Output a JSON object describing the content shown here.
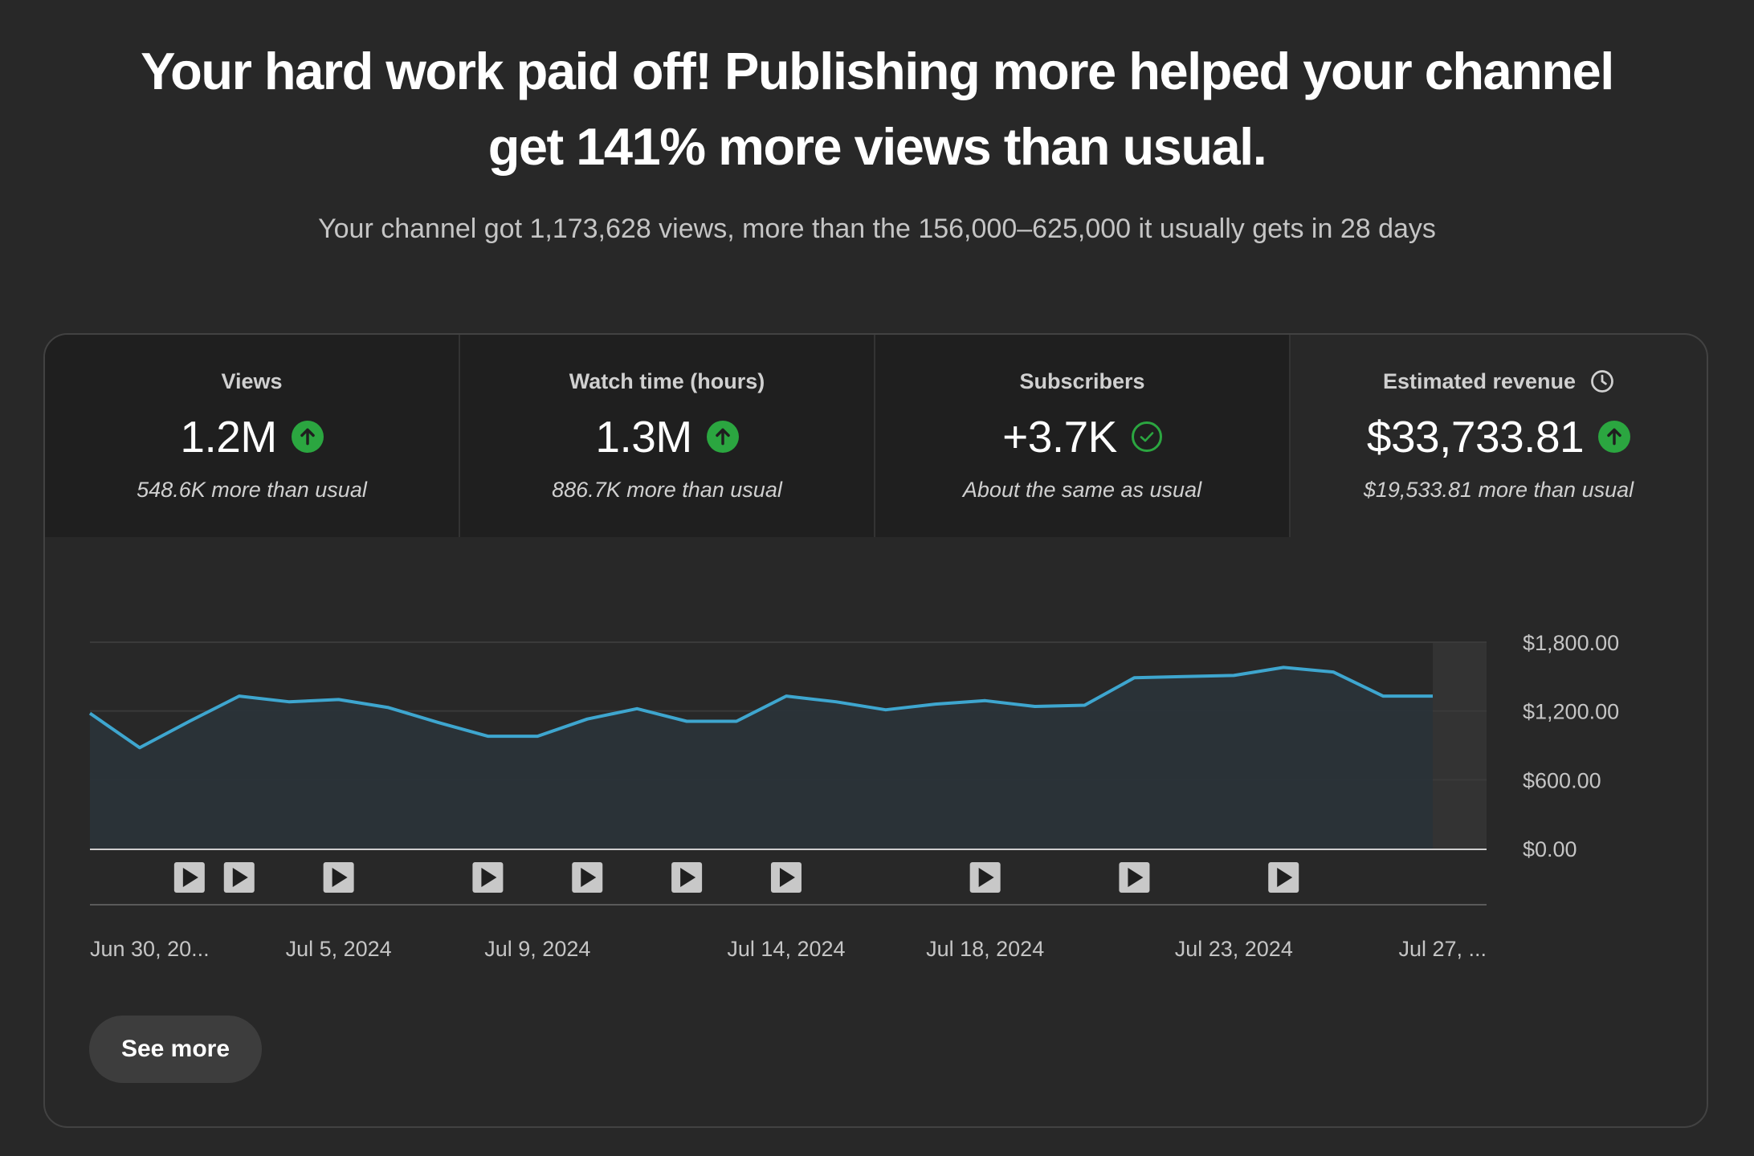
{
  "header": {
    "headline_line1": "Your hard work paid off! Publishing more helped your channel",
    "headline_line2": "get 141% more views than usual.",
    "subline": "Your channel got 1,173,628 views, more than the 156,000–625,000 it usually gets in 28 days"
  },
  "metrics": [
    {
      "title": "Views",
      "value": "1.2M",
      "icon": "arrow-up-icon",
      "note": "548.6K more than usual"
    },
    {
      "title": "Watch time (hours)",
      "value": "1.3M",
      "icon": "arrow-up-icon",
      "note": "886.7K more than usual"
    },
    {
      "title": "Subscribers",
      "value": "+3.7K",
      "icon": "check-circle-icon",
      "note": "About the same as usual"
    },
    {
      "title": "Estimated revenue",
      "value": "$33,733.81",
      "icon": "arrow-up-icon",
      "note": "$19,533.81 more than usual",
      "title_icon": "clock-icon"
    }
  ],
  "colors": {
    "background": "#282828",
    "line": "#3ea6cf",
    "area": "#2a3339",
    "positive": "#2ba640"
  },
  "chart_data": {
    "type": "area",
    "title": "",
    "xlabel": "",
    "ylabel": "",
    "y_tick_labels": [
      "$0.00",
      "$600.00",
      "$1,200.00",
      "$1,800.00"
    ],
    "y_ticks": [
      0,
      600,
      1200,
      1800
    ],
    "ylim": [
      0,
      1800
    ],
    "x_tick_labels": [
      "Jun 30, 20...",
      "Jul 5, 2024",
      "Jul 9, 2024",
      "Jul 14, 2024",
      "Jul 18, 2024",
      "Jul 23, 2024",
      "Jul 27, ..."
    ],
    "x_tick_dates": [
      "2024-06-30",
      "2024-07-05",
      "2024-07-09",
      "2024-07-14",
      "2024-07-18",
      "2024-07-23",
      "2024-07-27"
    ],
    "x": [
      "2024-06-30",
      "2024-07-01",
      "2024-07-02",
      "2024-07-03",
      "2024-07-04",
      "2024-07-05",
      "2024-07-06",
      "2024-07-07",
      "2024-07-08",
      "2024-07-09",
      "2024-07-10",
      "2024-07-11",
      "2024-07-12",
      "2024-07-13",
      "2024-07-14",
      "2024-07-15",
      "2024-07-16",
      "2024-07-17",
      "2024-07-18",
      "2024-07-19",
      "2024-07-20",
      "2024-07-21",
      "2024-07-22",
      "2024-07-23",
      "2024-07-24",
      "2024-07-25",
      "2024-07-26",
      "2024-07-27"
    ],
    "values": [
      1180,
      880,
      1110,
      1330,
      1280,
      1300,
      1230,
      1100,
      980,
      980,
      1130,
      1220,
      1110,
      1110,
      1330,
      1280,
      1210,
      1260,
      1290,
      1240,
      1250,
      1490,
      1500,
      1510,
      1580,
      1540,
      1330,
      1330
    ],
    "video_publish_dates": [
      "2024-07-02",
      "2024-07-03",
      "2024-07-05",
      "2024-07-08",
      "2024-07-10",
      "2024-07-12",
      "2024-07-14",
      "2024-07-18",
      "2024-07-21",
      "2024-07-24"
    ],
    "video_marker_icon": "play-icon",
    "highlight_dates": [
      "2024-07-27"
    ],
    "grid": true
  },
  "actions": {
    "see_more": "See more"
  }
}
